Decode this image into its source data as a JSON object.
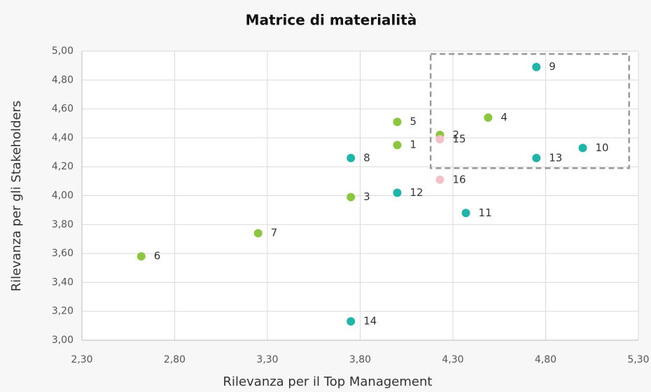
{
  "chart_data": {
    "type": "scatter",
    "title": "Matrice di materialità",
    "x_label": "Rilevanza per il Top Management",
    "y_label": "Rilevanza per gli Stakeholders",
    "xlim": [
      2.3,
      5.3
    ],
    "ylim": [
      3.0,
      5.0
    ],
    "xticks": [
      {
        "value": 2.3,
        "label": "2,30"
      },
      {
        "value": 2.8,
        "label": "2,80"
      },
      {
        "value": 3.3,
        "label": "3,30"
      },
      {
        "value": 3.8,
        "label": "3,80"
      },
      {
        "value": 4.3,
        "label": "4,30"
      },
      {
        "value": 4.8,
        "label": "4,80"
      },
      {
        "value": 5.3,
        "label": "5,30"
      }
    ],
    "yticks": [
      {
        "value": 3.0,
        "label": "3,00"
      },
      {
        "value": 3.2,
        "label": "3,20"
      },
      {
        "value": 3.4,
        "label": "3,40"
      },
      {
        "value": 3.6,
        "label": "3,60"
      },
      {
        "value": 3.8,
        "label": "3,80"
      },
      {
        "value": 4.0,
        "label": "4,00"
      },
      {
        "value": 4.2,
        "label": "4,20"
      },
      {
        "value": 4.4,
        "label": "4,40"
      },
      {
        "value": 4.6,
        "label": "4,60"
      },
      {
        "value": 4.8,
        "label": "4,80"
      },
      {
        "value": 5.0,
        "label": "5,00"
      }
    ],
    "grid": true,
    "highlight": {
      "xlim": [
        4.18,
        5.25
      ],
      "ylim": [
        4.19,
        4.98
      ]
    },
    "series": [
      {
        "color": "#8cc63f",
        "labels": [
          "1",
          "2",
          "3",
          "4",
          "5",
          "6",
          "7"
        ],
        "x": [
          4.0,
          4.23,
          3.75,
          4.49,
          4.0,
          2.62,
          3.25
        ],
        "values": [
          4.35,
          4.42,
          3.99,
          4.54,
          4.51,
          3.58,
          3.74
        ]
      },
      {
        "color": "#1fb5a8",
        "labels": [
          "8",
          "9",
          "10",
          "11",
          "12",
          "13",
          "14"
        ],
        "x": [
          3.75,
          4.75,
          5.0,
          4.37,
          4.0,
          4.75,
          3.75
        ],
        "values": [
          4.26,
          4.89,
          4.33,
          3.88,
          4.02,
          4.26,
          3.13
        ]
      },
      {
        "color": "#f4c1c9",
        "labels": [
          "15",
          "16"
        ],
        "x": [
          4.23,
          4.23
        ],
        "values": [
          4.39,
          4.11
        ]
      }
    ]
  }
}
